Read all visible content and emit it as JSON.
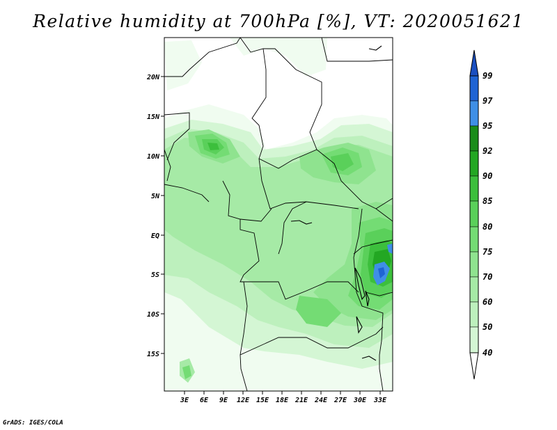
{
  "title": "Relative humidity at 700hPa [%], VT: 2020051621",
  "credit": "GrADS: IGES/COLA",
  "colors": {
    "c40": "#f0fcf0",
    "c50": "#d4f6d4",
    "c60": "#bdf0bd",
    "c70": "#a6eaa6",
    "c75": "#8fe38f",
    "c80": "#74dc74",
    "c85": "#5ad05a",
    "c90": "#3cbf3c",
    "c92": "#23a723",
    "c95": "#1a8c1a",
    "c97": "#3f8fe6",
    "c99": "#1f64d4",
    "top": "#1a4fc0"
  },
  "map": {
    "lat_labels": [
      "20N",
      "15N",
      "10N",
      "5N",
      "EQ",
      "5S",
      "10S",
      "15S"
    ],
    "lon_labels": [
      "3E",
      "6E",
      "9E",
      "12E",
      "15E",
      "18E",
      "21E",
      "24E",
      "27E",
      "30E",
      "33E"
    ]
  },
  "colorbar": {
    "labels": [
      "99",
      "97",
      "95",
      "92",
      "90",
      "85",
      "80",
      "75",
      "70",
      "60",
      "50",
      "40"
    ]
  }
}
